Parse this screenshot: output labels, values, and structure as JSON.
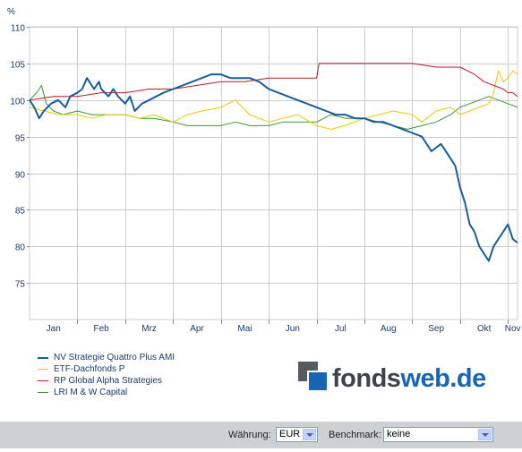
{
  "chart_data": {
    "type": "line",
    "ylabel": "%",
    "ylim": [
      70,
      110
    ],
    "yticks": [
      75,
      80,
      85,
      90,
      95,
      100,
      105,
      110
    ],
    "months": [
      "Jan",
      "Feb",
      "Mrz",
      "Apr",
      "Mai",
      "Jun",
      "Jul",
      "Aug",
      "Sep",
      "Okt",
      "Nov"
    ],
    "month_boundaries": [
      1,
      2,
      3,
      4,
      5,
      6,
      7,
      8,
      9,
      10
    ],
    "xlim": [
      0,
      10.2
    ],
    "grid": true,
    "legend_position": "bottom-left",
    "series": [
      {
        "name": "NV Strategie Quattro Plus AMI",
        "color": "#1a5d9c",
        "width": 2,
        "x": [
          0,
          0.1,
          0.2,
          0.3,
          0.45,
          0.6,
          0.75,
          0.85,
          1.0,
          1.1,
          1.2,
          1.35,
          1.45,
          1.5,
          1.65,
          1.75,
          1.85,
          2.0,
          2.1,
          2.2,
          2.35,
          2.5,
          2.65,
          2.8,
          3.0,
          3.2,
          3.4,
          3.6,
          3.8,
          4.0,
          4.2,
          4.4,
          4.6,
          4.8,
          5.0,
          5.2,
          5.4,
          5.6,
          5.8,
          6.0,
          6.2,
          6.4,
          6.6,
          6.8,
          7.0,
          7.2,
          7.4,
          7.6,
          7.8,
          8.0,
          8.2,
          8.4,
          8.6,
          8.8,
          8.9,
          9.0,
          9.1,
          9.2,
          9.3,
          9.4,
          9.5,
          9.6,
          9.7,
          9.8,
          9.9,
          10.0,
          10.1,
          10.2
        ],
        "y": [
          100,
          99,
          97.5,
          98.5,
          99.5,
          100,
          99,
          100.5,
          101,
          101.5,
          103,
          101.5,
          102.5,
          101.5,
          100.5,
          101.5,
          100.5,
          99.5,
          100.5,
          98.5,
          99.5,
          100,
          100.5,
          101,
          101.5,
          102,
          102.5,
          103,
          103.5,
          103.5,
          103,
          103,
          103,
          102.5,
          101.5,
          101,
          100.5,
          100,
          99.5,
          99,
          98.5,
          98,
          98,
          97.5,
          97.5,
          97,
          97,
          96.5,
          96,
          95.5,
          95,
          93,
          94,
          92,
          91,
          88,
          86,
          83,
          82,
          80,
          79,
          78,
          80,
          81,
          82,
          83,
          81,
          80.5
        ]
      },
      {
        "name": "ETF-Dachfonds P",
        "color": "#f0c800",
        "width": 1,
        "x": [
          0,
          0.3,
          0.6,
          1.0,
          1.3,
          1.6,
          2.0,
          2.3,
          2.6,
          3.0,
          3.3,
          3.6,
          4.0,
          4.3,
          4.6,
          5.0,
          5.3,
          5.6,
          6.0,
          6.3,
          6.6,
          7.0,
          7.3,
          7.6,
          8.0,
          8.2,
          8.5,
          8.8,
          9.0,
          9.2,
          9.4,
          9.6,
          9.7,
          9.8,
          9.9,
          10.0,
          10.1,
          10.2
        ],
        "y": [
          99,
          98.5,
          98,
          98,
          97.5,
          98,
          98,
          97.5,
          98,
          97,
          98,
          98.5,
          99,
          100,
          98,
          97,
          97.5,
          98,
          96.5,
          96,
          96.5,
          97.5,
          98,
          98.5,
          98,
          97,
          98.5,
          99,
          98,
          98.5,
          99,
          99.5,
          101,
          104,
          102.5,
          103,
          104,
          103.5
        ]
      },
      {
        "name": "RP Global Alpha Strategies",
        "color": "#c0191f",
        "width": 1,
        "x": [
          0,
          0.5,
          1.0,
          1.5,
          2.0,
          2.5,
          3.0,
          3.5,
          4.0,
          4.5,
          5.0,
          5.5,
          5.9,
          6.0,
          6.05,
          6.5,
          7.0,
          7.5,
          8.0,
          8.5,
          9.0,
          9.3,
          9.5,
          9.7,
          9.9,
          10.0,
          10.1,
          10.2
        ],
        "y": [
          100,
          100.5,
          100.5,
          101,
          101,
          101.5,
          101.5,
          102,
          102.5,
          102.5,
          103,
          103,
          103,
          103,
          105,
          105,
          105,
          105,
          105,
          104.5,
          104.5,
          103.5,
          102.5,
          102,
          101.5,
          101,
          101,
          100.5
        ]
      },
      {
        "name": "LRI M & W Capital",
        "color": "#3a9a2e",
        "width": 1,
        "x": [
          0,
          0.15,
          0.25,
          0.35,
          0.5,
          0.7,
          1.0,
          1.3,
          1.6,
          2.0,
          2.3,
          2.6,
          3.0,
          3.3,
          3.6,
          4.0,
          4.3,
          4.6,
          5.0,
          5.3,
          5.6,
          6.0,
          6.3,
          6.6,
          7.0,
          7.3,
          7.6,
          7.9,
          8.2,
          8.5,
          8.8,
          9.0,
          9.2,
          9.4,
          9.6,
          9.8,
          10.0,
          10.2
        ],
        "y": [
          100,
          101,
          102,
          99.5,
          98.5,
          98,
          98.5,
          98,
          98,
          98,
          97.5,
          97.5,
          97,
          96.5,
          96.5,
          96.5,
          97,
          96.5,
          96.5,
          97,
          97,
          97,
          98,
          97.5,
          97.5,
          97,
          96.5,
          96,
          96.5,
          97,
          98,
          99,
          99.5,
          100,
          100.5,
          100,
          99.5,
          99
        ]
      }
    ]
  },
  "logo": {
    "part1": "fonds",
    "part2": "web.de"
  },
  "controls": {
    "currency_label": "Währung:",
    "currency_value": "EUR",
    "benchmark_label": "Benchmark:",
    "benchmark_value": "keine"
  }
}
